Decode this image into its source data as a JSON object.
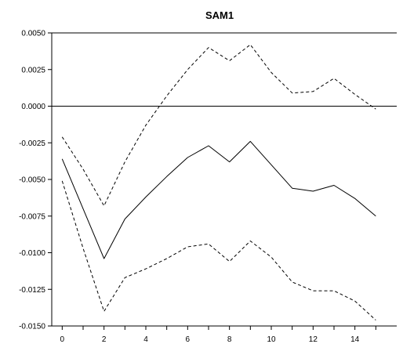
{
  "chart_data": {
    "type": "line",
    "title": "SAM1",
    "xlabel": "",
    "ylabel": "",
    "xlim": [
      -0.5,
      16
    ],
    "ylim": [
      -0.015,
      0.005
    ],
    "x_ticks": [
      0,
      2,
      4,
      6,
      8,
      10,
      12,
      14
    ],
    "x_tick_labels": [
      "0",
      "2",
      "4",
      "6",
      "8",
      "10",
      "12",
      "14"
    ],
    "y_ticks": [
      0.005,
      0.0025,
      0.0,
      -0.0025,
      -0.005,
      -0.0075,
      -0.01,
      -0.0125,
      -0.015
    ],
    "y_tick_labels": [
      "0.0050",
      "0.0025",
      "0.0000",
      "-0.0025",
      "-0.0050",
      "-0.0075",
      "-0.0100",
      "-0.0125",
      "-0.0150"
    ],
    "zero_line": true,
    "grid": false,
    "x": [
      0,
      1,
      2,
      3,
      4,
      5,
      6,
      7,
      8,
      9,
      10,
      11,
      12,
      13,
      14,
      15
    ],
    "series": [
      {
        "style": "solid",
        "color": "#000000",
        "values": [
          -0.0036,
          -0.007,
          -0.0104,
          -0.0077,
          -0.0062,
          -0.0048,
          -0.0035,
          -0.0027,
          -0.0038,
          -0.0024,
          -0.004,
          -0.0056,
          -0.0058,
          -0.0054,
          -0.0063,
          -0.0075
        ]
      },
      {
        "style": "dashed",
        "color": "#000000",
        "values": [
          -0.0021,
          -0.0043,
          -0.0068,
          -0.0038,
          -0.0013,
          0.0007,
          0.0025,
          0.004,
          0.0031,
          0.0042,
          0.0023,
          0.0009,
          0.001,
          0.0019,
          0.0008,
          -0.0002
        ]
      },
      {
        "style": "dashed",
        "color": "#000000",
        "values": [
          -0.0051,
          -0.0097,
          -0.014,
          -0.0117,
          -0.0111,
          -0.0104,
          -0.0096,
          -0.0094,
          -0.0106,
          -0.0092,
          -0.0103,
          -0.012,
          -0.0126,
          -0.0126,
          -0.0133,
          -0.0146
        ]
      }
    ]
  }
}
